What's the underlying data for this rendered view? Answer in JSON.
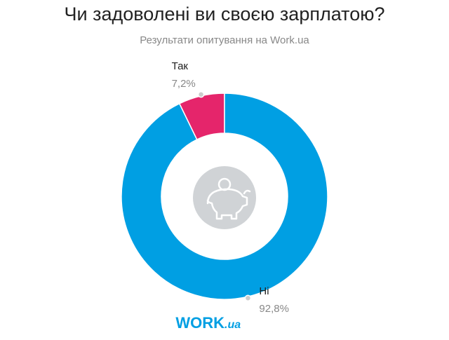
{
  "chart_data": {
    "type": "donut",
    "title": "Чи задоволені ви своєю зарплатою?",
    "subtitle": "Результати опитування на Work.ua",
    "categories": [
      "Так",
      "Ні"
    ],
    "values": [
      7.2,
      92.8
    ],
    "value_labels": [
      "7,2%",
      "92,8%"
    ],
    "colors": [
      "#e5256b",
      "#009fe3"
    ]
  },
  "logo": [
    "WORK",
    ".ua"
  ]
}
